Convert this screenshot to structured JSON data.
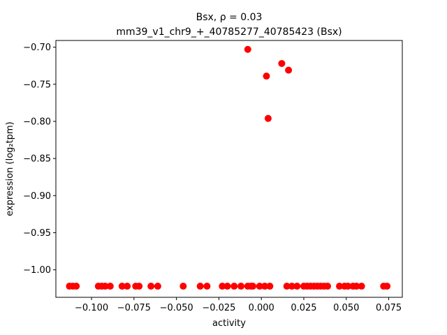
{
  "chart_data": {
    "type": "scatter",
    "title_line1": "Bsx, ρ = 0.03",
    "title_line2": "mm39_v1_chr9_+_40785277_40785423 (Bsx)",
    "xlabel": "activity",
    "ylabel": "expression (log₂tpm)",
    "xlim": [
      -0.121,
      0.083
    ],
    "ylim": [
      -1.037,
      -0.691
    ],
    "xticks": [
      -0.1,
      -0.075,
      -0.05,
      -0.025,
      0.0,
      0.025,
      0.05,
      0.075
    ],
    "xtick_labels": [
      "−0.100",
      "−0.075",
      "−0.050",
      "−0.025",
      "0.000",
      "0.025",
      "0.050",
      "0.075"
    ],
    "yticks": [
      -1.0,
      -0.95,
      -0.9,
      -0.85,
      -0.8,
      -0.75,
      -0.7
    ],
    "ytick_labels": [
      "−1.00",
      "−0.95",
      "−0.90",
      "−0.85",
      "−0.80",
      "−0.75",
      "−0.70"
    ],
    "grid": false,
    "point_color": "#ff0000",
    "points": [
      {
        "x": -0.113,
        "y": -1.022
      },
      {
        "x": -0.111,
        "y": -1.022
      },
      {
        "x": -0.109,
        "y": -1.022
      },
      {
        "x": -0.096,
        "y": -1.022
      },
      {
        "x": -0.094,
        "y": -1.022
      },
      {
        "x": -0.092,
        "y": -1.022
      },
      {
        "x": -0.089,
        "y": -1.022
      },
      {
        "x": -0.082,
        "y": -1.022
      },
      {
        "x": -0.079,
        "y": -1.022
      },
      {
        "x": -0.074,
        "y": -1.022
      },
      {
        "x": -0.072,
        "y": -1.022
      },
      {
        "x": -0.065,
        "y": -1.022
      },
      {
        "x": -0.061,
        "y": -1.022
      },
      {
        "x": -0.046,
        "y": -1.022
      },
      {
        "x": -0.036,
        "y": -1.022
      },
      {
        "x": -0.032,
        "y": -1.022
      },
      {
        "x": -0.023,
        "y": -1.022
      },
      {
        "x": -0.02,
        "y": -1.022
      },
      {
        "x": -0.016,
        "y": -1.022
      },
      {
        "x": -0.012,
        "y": -1.022
      },
      {
        "x": -0.008,
        "y": -1.022
      },
      {
        "x": -0.006,
        "y": -1.022
      },
      {
        "x": -0.005,
        "y": -1.022
      },
      {
        "x": -0.001,
        "y": -1.022
      },
      {
        "x": 0.002,
        "y": -1.022
      },
      {
        "x": 0.005,
        "y": -1.022
      },
      {
        "x": 0.015,
        "y": -1.022
      },
      {
        "x": 0.018,
        "y": -1.022
      },
      {
        "x": 0.021,
        "y": -1.022
      },
      {
        "x": 0.025,
        "y": -1.022
      },
      {
        "x": 0.027,
        "y": -1.022
      },
      {
        "x": 0.029,
        "y": -1.022
      },
      {
        "x": 0.031,
        "y": -1.022
      },
      {
        "x": 0.033,
        "y": -1.022
      },
      {
        "x": 0.035,
        "y": -1.022
      },
      {
        "x": 0.037,
        "y": -1.022
      },
      {
        "x": 0.039,
        "y": -1.022
      },
      {
        "x": 0.046,
        "y": -1.022
      },
      {
        "x": 0.049,
        "y": -1.022
      },
      {
        "x": 0.051,
        "y": -1.022
      },
      {
        "x": 0.054,
        "y": -1.022
      },
      {
        "x": 0.056,
        "y": -1.022
      },
      {
        "x": 0.059,
        "y": -1.022
      },
      {
        "x": 0.072,
        "y": -1.022
      },
      {
        "x": 0.074,
        "y": -1.022
      },
      {
        "x": -0.008,
        "y": -0.703
      },
      {
        "x": 0.012,
        "y": -0.722
      },
      {
        "x": 0.016,
        "y": -0.731
      },
      {
        "x": 0.003,
        "y": -0.739
      },
      {
        "x": 0.004,
        "y": -0.796
      }
    ]
  }
}
